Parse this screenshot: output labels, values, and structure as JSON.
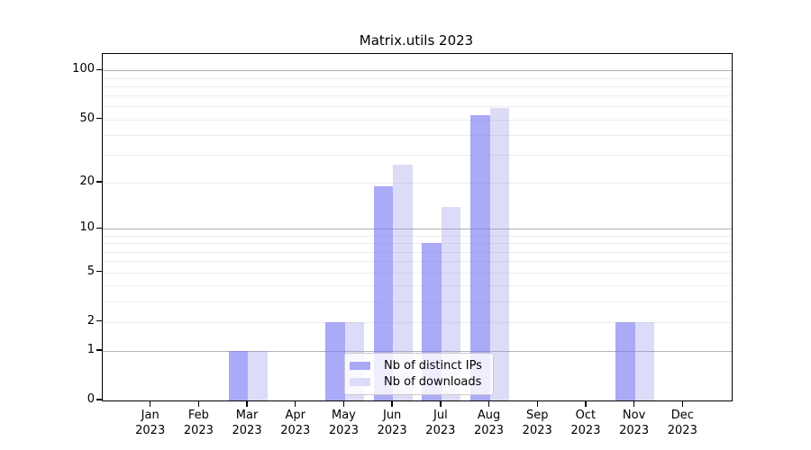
{
  "chart": {
    "title": "Matrix.utils 2023"
  },
  "chart_data": {
    "type": "bar",
    "title": "Matrix.utils 2023",
    "categories": [
      "Jan 2023",
      "Feb 2023",
      "Mar 2023",
      "Apr 2023",
      "May 2023",
      "Jun 2023",
      "Jul 2023",
      "Aug 2023",
      "Sep 2023",
      "Oct 2023",
      "Nov 2023",
      "Dec 2023"
    ],
    "month_labels": [
      "Jan",
      "Feb",
      "Mar",
      "Apr",
      "May",
      "Jun",
      "Jul",
      "Aug",
      "Sep",
      "Oct",
      "Nov",
      "Dec"
    ],
    "year_label": "2023",
    "series": [
      {
        "name": "Nb of distinct IPs",
        "color": "#a9a9f5",
        "values": [
          0,
          0,
          1,
          0,
          2,
          19,
          8,
          53,
          0,
          0,
          2,
          0
        ]
      },
      {
        "name": "Nb of downloads",
        "color": "#dcdcf8",
        "values": [
          0,
          0,
          1,
          0,
          2,
          26,
          14,
          59,
          0,
          0,
          2,
          0
        ]
      }
    ],
    "xlabel": "",
    "ylabel": "",
    "yscale": "log1p",
    "ylim": [
      0,
      126
    ],
    "yticks": [
      0,
      1,
      2,
      5,
      10,
      20,
      50,
      100
    ],
    "major_gridline_values": [
      1,
      10,
      100
    ],
    "minor_gridline_values": [
      2,
      3,
      4,
      5,
      6,
      7,
      8,
      9,
      20,
      30,
      40,
      50,
      60,
      70,
      80,
      90
    ],
    "grid": true,
    "legend_position": "lower-center",
    "colors": {
      "bar_ips": "#a9a9f5",
      "bar_downloads": "#dcdcf8",
      "major_grid": "#b3b3b3",
      "minor_grid": "#ececec",
      "axis": "#000000"
    }
  }
}
